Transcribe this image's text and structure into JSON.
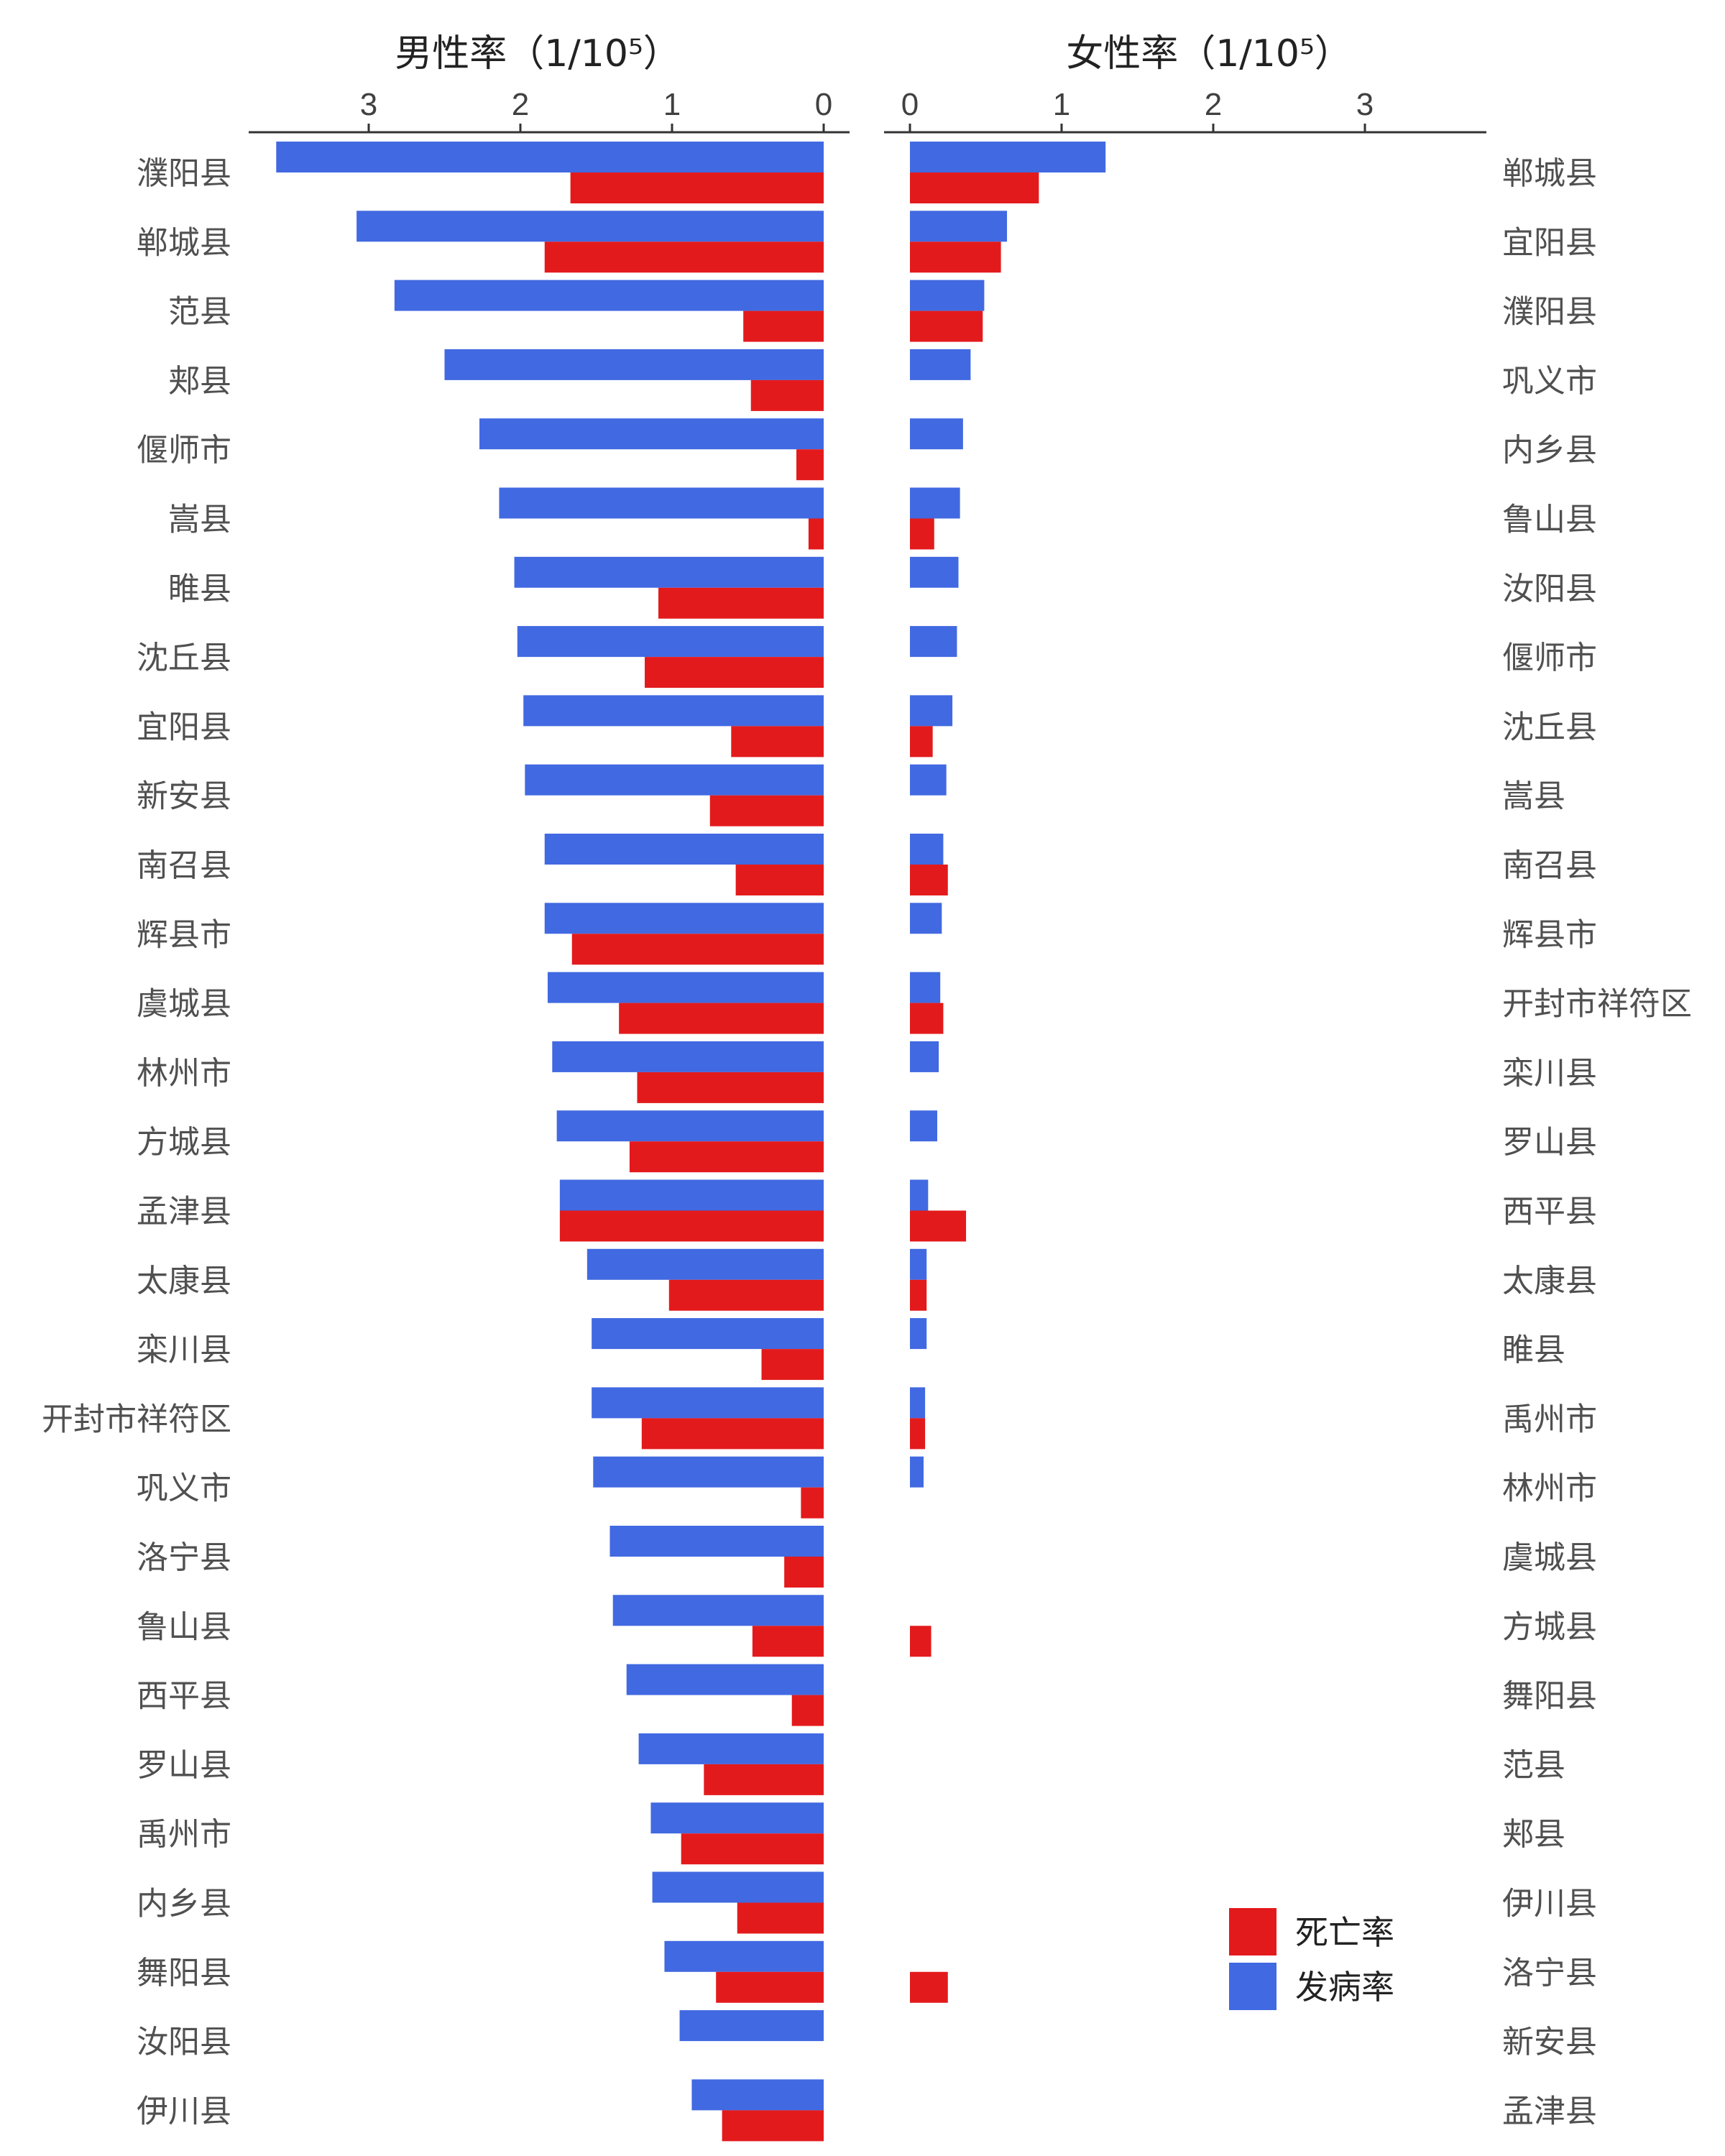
{
  "chart_data": [
    {
      "type": "bar",
      "orientation": "horizontal",
      "title": "男性率（1/10⁵）",
      "xlim": [
        0,
        3.8
      ],
      "x_direction": "reversed",
      "ticks": [
        0,
        1,
        2,
        3
      ],
      "tick_labels": [
        "0",
        "1",
        "2",
        "3"
      ],
      "categories": [
        "濮阳县",
        "郸城县",
        "范县",
        "郏县",
        "偃师市",
        "嵩县",
        "睢县",
        "沈丘县",
        "宜阳县",
        "新安县",
        "南召县",
        "辉县市",
        "虞城县",
        "林州市",
        "方城县",
        "孟津县",
        "太康县",
        "栾川县",
        "开封市祥符区",
        "巩义市",
        "洛宁县",
        "鲁山县",
        "西平县",
        "罗山县",
        "禹州市",
        "内乡县",
        "舞阳县",
        "汝阳县",
        "伊川县"
      ],
      "series": [
        {
          "name": "发病率",
          "color": "#4169E1",
          "values": [
            3.61,
            3.08,
            2.83,
            2.5,
            2.27,
            2.14,
            2.04,
            2.02,
            1.98,
            1.97,
            1.84,
            1.84,
            1.82,
            1.79,
            1.76,
            1.74,
            1.56,
            1.53,
            1.53,
            1.52,
            1.41,
            1.39,
            1.3,
            1.22,
            1.14,
            1.13,
            1.05,
            0.95,
            0.87
          ]
        },
        {
          "name": "死亡率",
          "color": "#E31A1C",
          "values": [
            1.67,
            1.84,
            0.53,
            0.48,
            0.18,
            0.1,
            1.09,
            1.18,
            0.61,
            0.75,
            0.58,
            1.66,
            1.35,
            1.23,
            1.28,
            1.74,
            1.02,
            0.41,
            1.2,
            0.15,
            0.26,
            0.47,
            0.21,
            0.79,
            0.94,
            0.57,
            0.71,
            0,
            0.67
          ]
        }
      ]
    },
    {
      "type": "bar",
      "orientation": "horizontal",
      "title": "女性率（1/10⁵）",
      "xlim": [
        0,
        3.8
      ],
      "x_direction": "normal",
      "ticks": [
        0,
        1,
        2,
        3
      ],
      "tick_labels": [
        "0",
        "1",
        "2",
        "3"
      ],
      "categories": [
        "郸城县",
        "宜阳县",
        "濮阳县",
        "巩义市",
        "内乡县",
        "鲁山县",
        "汝阳县",
        "偃师市",
        "沈丘县",
        "嵩县",
        "南召县",
        "辉县市",
        "开封市祥符区",
        "栾川县",
        "罗山县",
        "西平县",
        "太康县",
        "睢县",
        "禹州市",
        "林州市",
        "虞城县",
        "方城县",
        "舞阳县",
        "范县",
        "郏县",
        "伊川县",
        "洛宁县",
        "新安县",
        "孟津县"
      ],
      "series": [
        {
          "name": "发病率",
          "color": "#4169E1",
          "values": [
            1.29,
            0.64,
            0.49,
            0.4,
            0.35,
            0.33,
            0.32,
            0.31,
            0.28,
            0.24,
            0.22,
            0.21,
            0.2,
            0.19,
            0.18,
            0.12,
            0.11,
            0.11,
            0.1,
            0.09,
            0,
            0,
            0,
            0,
            0,
            0,
            0,
            0,
            0
          ]
        },
        {
          "name": "死亡率",
          "color": "#E31A1C",
          "values": [
            0.85,
            0.6,
            0.48,
            0,
            0,
            0.16,
            0,
            0,
            0.15,
            0,
            0.25,
            0,
            0.22,
            0,
            0,
            0.37,
            0.11,
            0,
            0.1,
            0,
            0,
            0.14,
            0,
            0,
            0,
            0,
            0.25,
            0,
            0
          ]
        }
      ]
    }
  ],
  "legend": {
    "position": "bottom-right",
    "items": [
      {
        "label": "死亡率",
        "color": "#E31A1C"
      },
      {
        "label": "发病率",
        "color": "#4169E1"
      }
    ]
  }
}
